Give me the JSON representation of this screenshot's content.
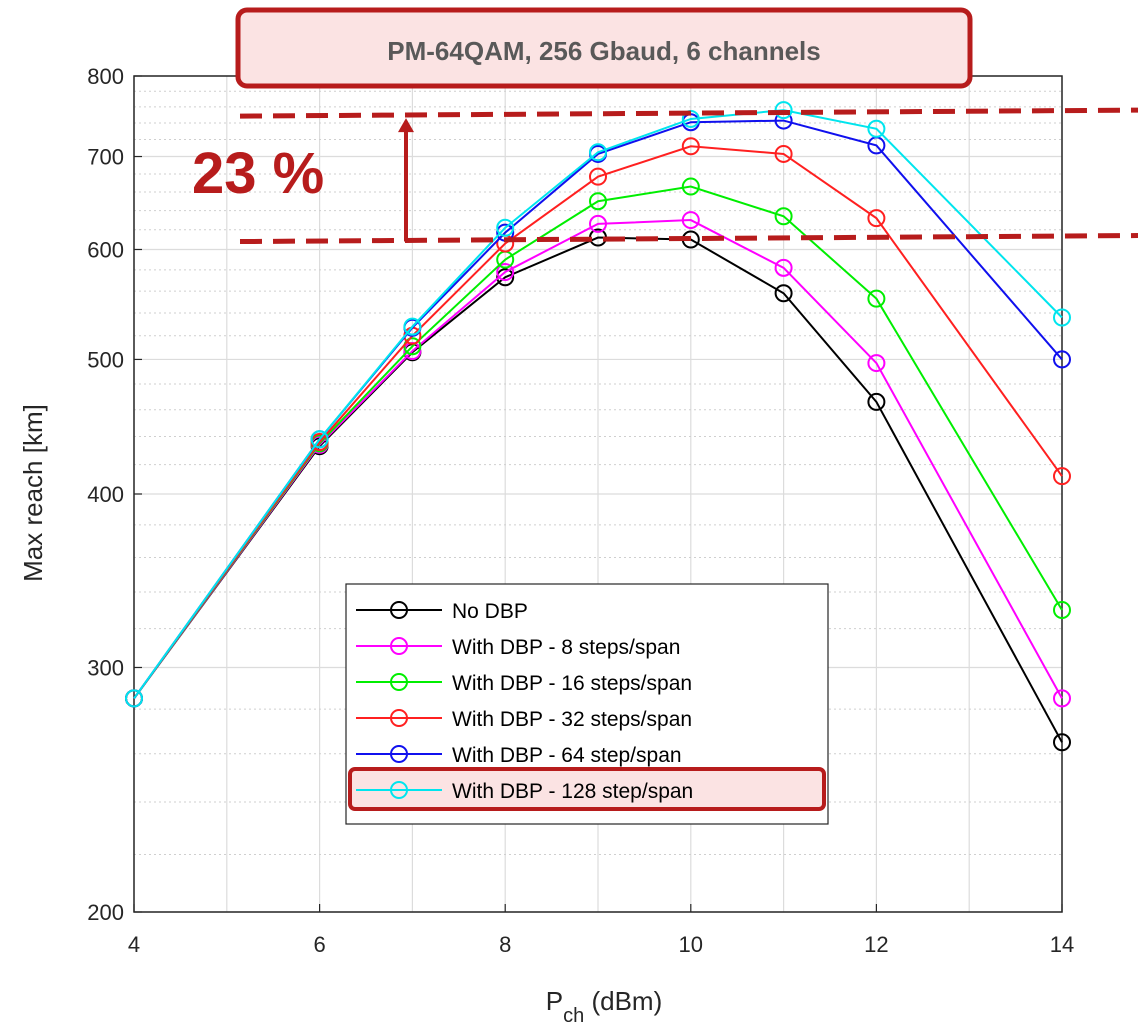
{
  "chart_data": {
    "type": "line",
    "title": "PM-64QAM, 256 Gbaud, 6 channels",
    "xlabel_main": "P",
    "xlabel_sub": "ch",
    "xlabel_unit": " (dBm)",
    "ylabel": "Max reach [km]",
    "y_scale": "log",
    "xlim": [
      4,
      14
    ],
    "ylim": [
      200,
      800
    ],
    "x_ticks": [
      4,
      6,
      8,
      10,
      12,
      14
    ],
    "y_ticks": [
      200,
      300,
      400,
      500,
      600,
      700,
      800
    ],
    "grid": true,
    "legend_position": "bottom-center",
    "annotation_text": "23 %",
    "annotation_color": "#b71c1c",
    "x": [
      4,
      6,
      7,
      8,
      9,
      10,
      11,
      12,
      14
    ],
    "series": [
      {
        "name": "No DBP",
        "color": "#000000",
        "values": [
          285,
          433,
          506,
          573,
          612,
          610,
          558,
          466,
          265
        ]
      },
      {
        "name": "With DBP - 8 steps/span",
        "color": "#ff00ff",
        "values": [
          285,
          434,
          507,
          578,
          626,
          630,
          582,
          497,
          285
        ]
      },
      {
        "name": "With DBP - 16 steps/span",
        "color": "#00ee00",
        "values": [
          285,
          435,
          511,
          590,
          650,
          666,
          634,
          553,
          330
        ]
      },
      {
        "name": "With DBP - 32 steps/span",
        "color": "#ff2020",
        "values": [
          285,
          436,
          520,
          606,
          677,
          712,
          703,
          632,
          412
        ]
      },
      {
        "name": "With DBP - 64 step/span",
        "color": "#1010ee",
        "values": [
          285,
          438,
          527,
          617,
          703,
          741,
          743,
          713,
          500
        ]
      },
      {
        "name": "With DBP - 128 step/span",
        "color": "#00e5ee",
        "values": [
          285,
          438,
          528,
          622,
          705,
          745,
          756,
          733,
          536
        ]
      }
    ]
  }
}
